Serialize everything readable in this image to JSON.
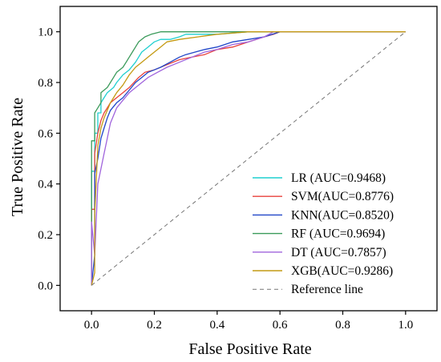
{
  "chart_data": {
    "type": "line",
    "title": "",
    "xlabel": "False Positive Rate",
    "ylabel": "True Positive Rate",
    "xlim": [
      -0.1,
      1.1
    ],
    "ylim": [
      -0.1,
      1.1
    ],
    "xticks": [
      0.0,
      0.2,
      0.4,
      0.6,
      0.8,
      1.0
    ],
    "yticks": [
      0.0,
      0.2,
      0.4,
      0.6,
      0.8,
      1.0
    ],
    "xtick_labels": [
      "0.0",
      "0.2",
      "0.4",
      "0.6",
      "0.8",
      "1.0"
    ],
    "ytick_labels": [
      "0.0",
      "0.2",
      "0.4",
      "0.6",
      "0.8",
      "1.0"
    ],
    "grid": false,
    "legend_position": "bottom-right",
    "series": [
      {
        "name": "LR  (AUC=0.9468)",
        "color": "#1fcfcf",
        "x": [
          0,
          0,
          0.01,
          0.01,
          0.02,
          0.02,
          0.03,
          0.03,
          0.04,
          0.05,
          0.06,
          0.07,
          0.08,
          0.1,
          0.12,
          0.14,
          0.15,
          0.16,
          0.18,
          0.2,
          0.22,
          0.25,
          0.28,
          0.3,
          0.4,
          0.5,
          0.55,
          1.0
        ],
        "y": [
          0,
          0.45,
          0.45,
          0.6,
          0.6,
          0.68,
          0.68,
          0.72,
          0.74,
          0.76,
          0.77,
          0.78,
          0.8,
          0.83,
          0.85,
          0.88,
          0.9,
          0.92,
          0.94,
          0.96,
          0.97,
          0.97,
          0.98,
          0.99,
          0.99,
          1.0,
          1.0,
          1.0
        ]
      },
      {
        "name": "SVM(AUC=0.8776)",
        "color": "#e8413b",
        "x": [
          0,
          0,
          0.01,
          0.01,
          0.02,
          0.03,
          0.04,
          0.05,
          0.06,
          0.08,
          0.1,
          0.12,
          0.15,
          0.17,
          0.2,
          0.24,
          0.28,
          0.32,
          0.36,
          0.4,
          0.45,
          0.5,
          0.55,
          0.58,
          0.6,
          1.0
        ],
        "y": [
          0,
          0.3,
          0.3,
          0.52,
          0.6,
          0.65,
          0.68,
          0.7,
          0.72,
          0.74,
          0.76,
          0.78,
          0.82,
          0.84,
          0.85,
          0.87,
          0.89,
          0.9,
          0.91,
          0.93,
          0.94,
          0.96,
          0.98,
          0.99,
          1.0,
          1.0
        ]
      },
      {
        "name": "KNN(AUC=0.8520)",
        "color": "#2046c8",
        "x": [
          0,
          0.01,
          0.01,
          0.02,
          0.03,
          0.04,
          0.05,
          0.06,
          0.08,
          0.1,
          0.12,
          0.14,
          0.16,
          0.18,
          0.2,
          0.22,
          0.25,
          0.28,
          0.3,
          0.33,
          0.36,
          0.4,
          0.45,
          0.5,
          0.55,
          0.6,
          1.0
        ],
        "y": [
          0,
          0.12,
          0.44,
          0.5,
          0.58,
          0.62,
          0.66,
          0.69,
          0.72,
          0.74,
          0.77,
          0.8,
          0.82,
          0.84,
          0.85,
          0.86,
          0.88,
          0.9,
          0.91,
          0.92,
          0.93,
          0.94,
          0.96,
          0.97,
          0.98,
          1.0,
          1.0
        ]
      },
      {
        "name": "RF  (AUC=0.9694)",
        "color": "#3a9a5a",
        "x": [
          0,
          0,
          0.01,
          0.01,
          0.02,
          0.03,
          0.03,
          0.05,
          0.06,
          0.07,
          0.08,
          0.1,
          0.11,
          0.12,
          0.13,
          0.14,
          0.15,
          0.17,
          0.19,
          0.22,
          0.3,
          0.4,
          0.5,
          1.0
        ],
        "y": [
          0,
          0.57,
          0.57,
          0.68,
          0.7,
          0.72,
          0.76,
          0.78,
          0.8,
          0.82,
          0.84,
          0.86,
          0.88,
          0.9,
          0.92,
          0.94,
          0.96,
          0.98,
          0.99,
          1.0,
          1.0,
          1.0,
          1.0,
          1.0
        ]
      },
      {
        "name": "DT  (AUC=0.7857)",
        "color": "#a064dc",
        "x": [
          0,
          0,
          0.01,
          0.02,
          0.03,
          0.04,
          0.05,
          0.06,
          0.08,
          0.1,
          0.12,
          0.15,
          0.18,
          0.21,
          0.24,
          0.28,
          0.32,
          0.36,
          0.4,
          0.45,
          0.5,
          0.55,
          0.58,
          1.0
        ],
        "y": [
          0,
          0.25,
          0.12,
          0.4,
          0.46,
          0.52,
          0.58,
          0.64,
          0.7,
          0.73,
          0.76,
          0.79,
          0.82,
          0.84,
          0.86,
          0.88,
          0.9,
          0.92,
          0.93,
          0.95,
          0.96,
          0.98,
          1.0,
          1.0
        ]
      },
      {
        "name": "XGB(AUC=0.9286)",
        "color": "#c49a12",
        "x": [
          0,
          0.01,
          0.01,
          0.02,
          0.03,
          0.04,
          0.05,
          0.06,
          0.07,
          0.08,
          0.1,
          0.12,
          0.14,
          0.16,
          0.18,
          0.2,
          0.22,
          0.24,
          0.28,
          0.34,
          0.4,
          0.5,
          0.6,
          1.0
        ],
        "y": [
          0,
          0.05,
          0.28,
          0.55,
          0.62,
          0.66,
          0.69,
          0.72,
          0.74,
          0.76,
          0.79,
          0.83,
          0.86,
          0.88,
          0.9,
          0.92,
          0.94,
          0.96,
          0.97,
          0.98,
          0.99,
          1.0,
          1.0,
          1.0
        ]
      },
      {
        "name": "Reference line",
        "color": "#777777",
        "dashed": true,
        "x": [
          0,
          1
        ],
        "y": [
          0,
          1
        ]
      }
    ]
  }
}
